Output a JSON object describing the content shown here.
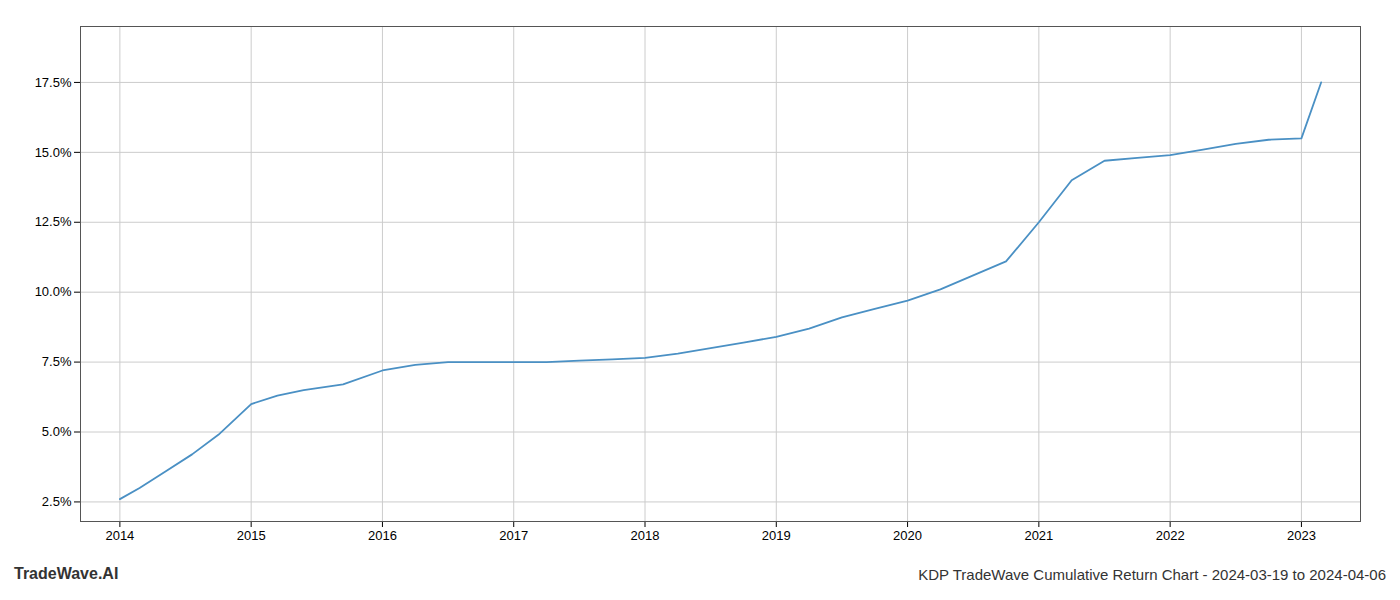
{
  "chart_data": {
    "type": "line",
    "title": "KDP TradeWave Cumulative Return Chart - 2024-03-19 to 2024-04-06",
    "watermark": "TradeWave.AI",
    "color": "#4a90c4",
    "x": [
      2014.0,
      2014.15,
      2014.35,
      2014.55,
      2014.75,
      2015.0,
      2015.2,
      2015.4,
      2015.7,
      2016.0,
      2016.25,
      2016.5,
      2016.75,
      2017.0,
      2017.25,
      2017.5,
      2017.75,
      2018.0,
      2018.25,
      2018.5,
      2018.75,
      2019.0,
      2019.25,
      2019.5,
      2019.75,
      2020.0,
      2020.25,
      2020.5,
      2020.75,
      2021.0,
      2021.25,
      2021.5,
      2021.75,
      2022.0,
      2022.25,
      2022.5,
      2022.75,
      2023.0,
      2023.15
    ],
    "values": [
      2.6,
      3.0,
      3.6,
      4.2,
      4.9,
      6.0,
      6.3,
      6.5,
      6.7,
      7.2,
      7.4,
      7.5,
      7.5,
      7.5,
      7.5,
      7.55,
      7.6,
      7.65,
      7.8,
      8.0,
      8.2,
      8.4,
      8.7,
      9.1,
      9.4,
      9.7,
      10.1,
      10.6,
      11.1,
      12.5,
      14.0,
      14.7,
      14.8,
      14.9,
      15.1,
      15.3,
      15.45,
      15.5,
      17.5
    ],
    "xlim": [
      2013.7,
      2023.45
    ],
    "ylim": [
      1.8,
      19.5
    ],
    "xticks": [
      2014,
      2015,
      2016,
      2017,
      2018,
      2019,
      2020,
      2021,
      2022,
      2023
    ],
    "yticks": [
      {
        "value": 2.5,
        "label": "2.5%"
      },
      {
        "value": 5.0,
        "label": "5.0%"
      },
      {
        "value": 7.5,
        "label": "7.5%"
      },
      {
        "value": 10.0,
        "label": "10.0%"
      },
      {
        "value": 12.5,
        "label": "12.5%"
      },
      {
        "value": 15.0,
        "label": "15.0%"
      },
      {
        "value": 17.5,
        "label": "17.5%"
      }
    ],
    "grid": true
  }
}
